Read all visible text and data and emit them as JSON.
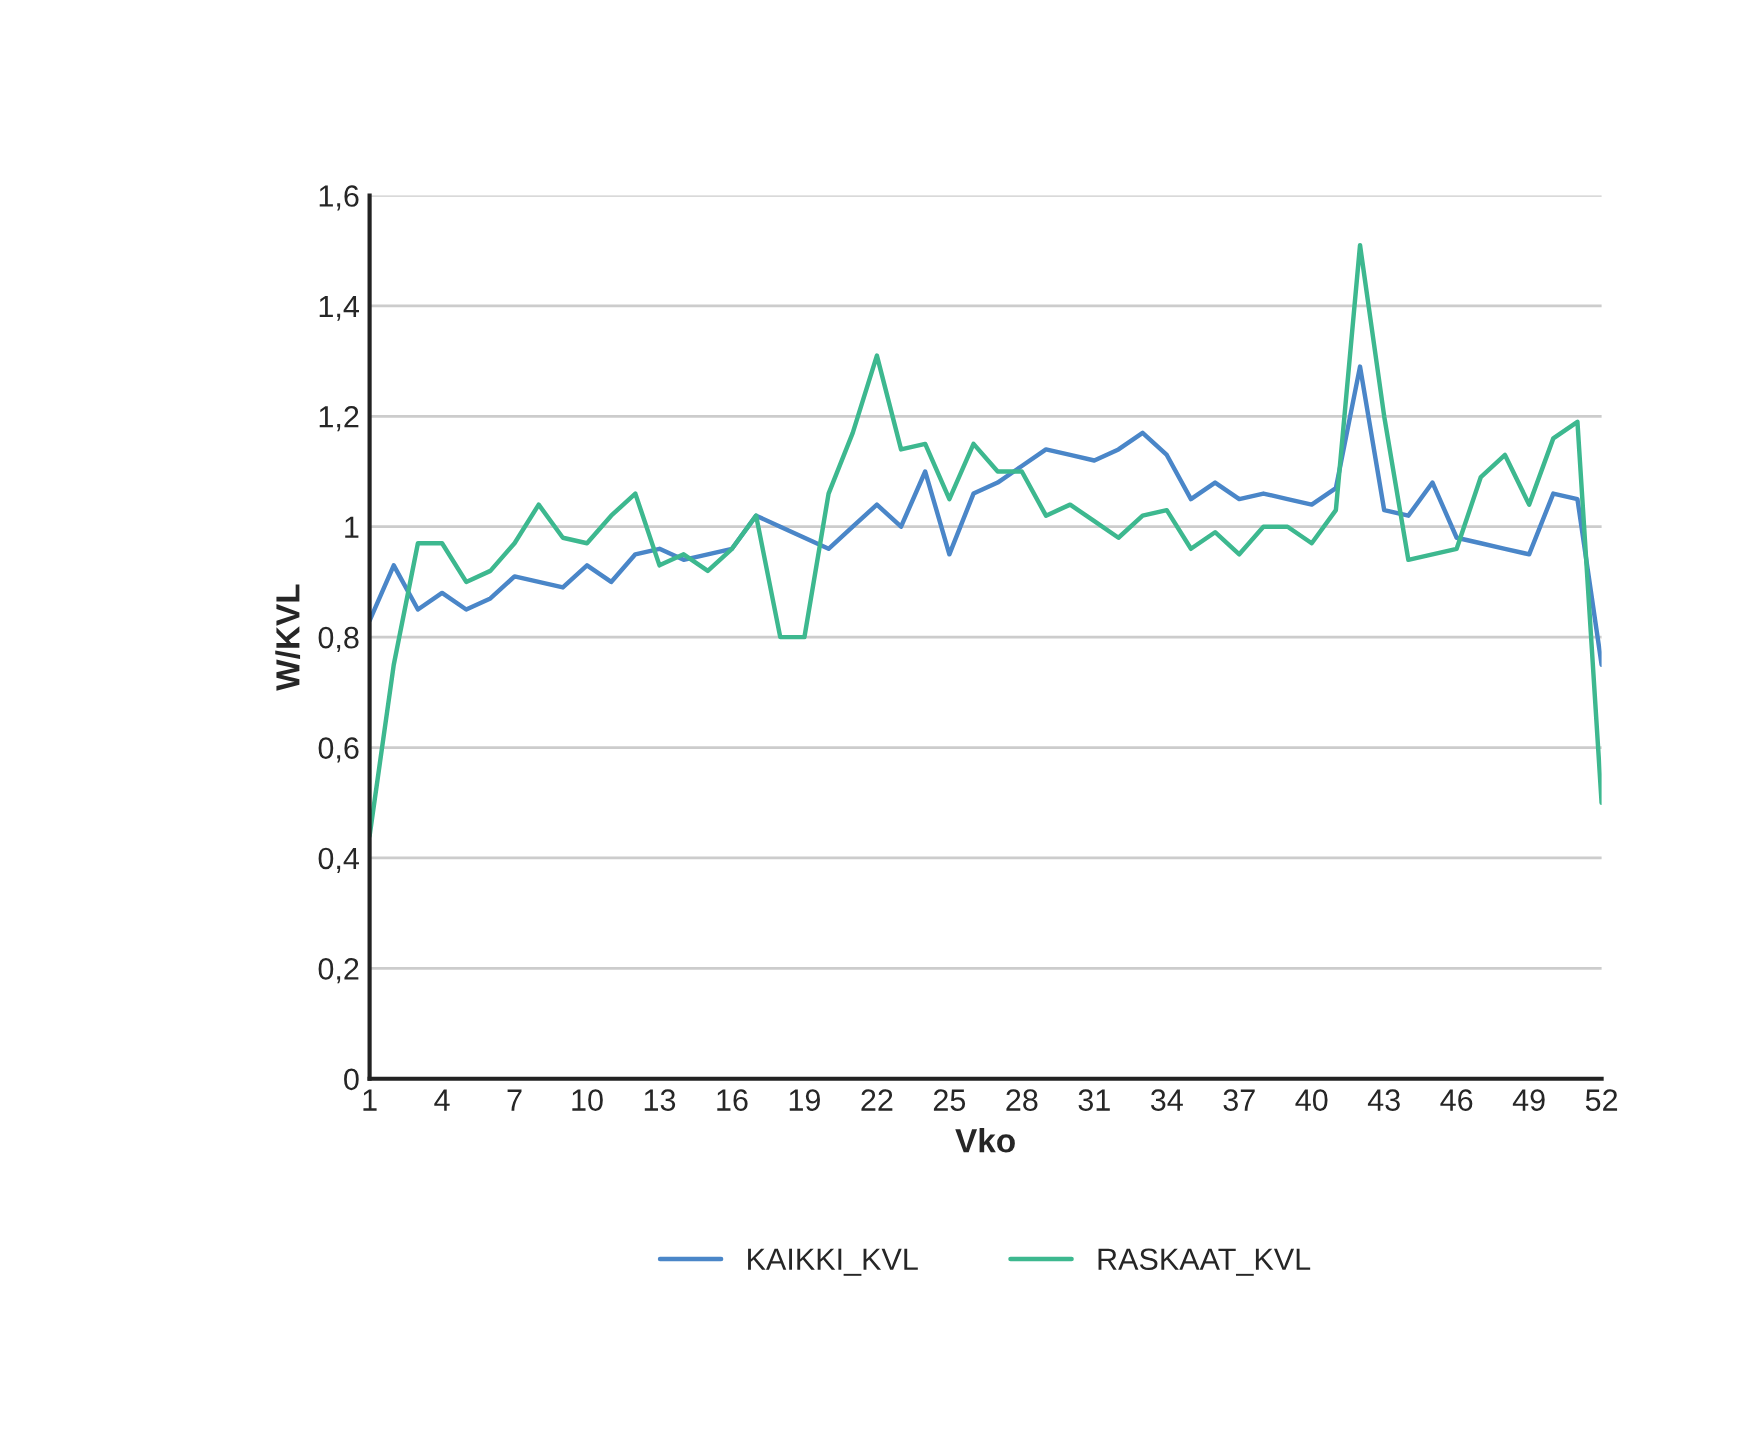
{
  "chart_data": {
    "type": "line",
    "xlabel": "Vko",
    "ylabel": "W/KVL",
    "x": [
      1,
      2,
      3,
      4,
      5,
      6,
      7,
      8,
      9,
      10,
      11,
      12,
      13,
      14,
      15,
      16,
      17,
      18,
      19,
      20,
      21,
      22,
      23,
      24,
      25,
      26,
      27,
      28,
      29,
      30,
      31,
      32,
      33,
      34,
      35,
      36,
      37,
      38,
      39,
      40,
      41,
      42,
      43,
      44,
      45,
      46,
      47,
      48,
      49,
      50,
      51,
      52
    ],
    "series": [
      {
        "name": "KAIKKI_KVL",
        "color": "#4a86c8",
        "values": [
          0.83,
          0.93,
          0.85,
          0.88,
          0.85,
          0.87,
          0.91,
          0.9,
          0.89,
          0.93,
          0.9,
          0.95,
          0.96,
          0.94,
          0.95,
          0.96,
          1.02,
          1.0,
          0.98,
          0.96,
          1.0,
          1.04,
          1.0,
          1.1,
          0.95,
          1.06,
          1.08,
          1.11,
          1.14,
          1.13,
          1.12,
          1.14,
          1.17,
          1.13,
          1.05,
          1.08,
          1.05,
          1.06,
          1.05,
          1.04,
          1.07,
          1.29,
          1.03,
          1.02,
          1.08,
          0.98,
          0.97,
          0.96,
          0.95,
          1.06,
          1.05,
          0.75
        ]
      },
      {
        "name": "RASKAAT_KVL",
        "color": "#3db88f",
        "values": [
          0.44,
          0.75,
          0.97,
          0.97,
          0.9,
          0.92,
          0.97,
          1.04,
          0.98,
          0.97,
          1.02,
          1.06,
          0.93,
          0.95,
          0.92,
          0.96,
          1.02,
          0.8,
          0.8,
          1.06,
          1.17,
          1.31,
          1.14,
          1.15,
          1.05,
          1.15,
          1.1,
          1.1,
          1.02,
          1.04,
          1.01,
          0.98,
          1.02,
          1.03,
          0.96,
          0.99,
          0.95,
          1.0,
          1.0,
          0.97,
          1.03,
          1.51,
          1.2,
          0.94,
          0.95,
          0.96,
          1.09,
          1.13,
          1.04,
          1.16,
          1.19,
          0.5
        ]
      }
    ],
    "xlim": [
      1,
      52
    ],
    "xticks": [
      1,
      4,
      7,
      10,
      13,
      16,
      19,
      22,
      25,
      28,
      31,
      34,
      37,
      40,
      43,
      46,
      49,
      52
    ],
    "ylim": [
      0,
      1.6
    ],
    "yticks": [
      {
        "value": 0,
        "label": "0"
      },
      {
        "value": 0.2,
        "label": "0,2"
      },
      {
        "value": 0.4,
        "label": "0,4"
      },
      {
        "value": 0.6,
        "label": "0,6"
      },
      {
        "value": 0.8,
        "label": "0,8"
      },
      {
        "value": 1,
        "label": "1"
      },
      {
        "value": 1.2,
        "label": "1,2"
      },
      {
        "value": 1.4,
        "label": "1,4"
      },
      {
        "value": 1.6,
        "label": "1,6"
      }
    ],
    "grid": "y",
    "legend": "bottom",
    "marker": "none",
    "line_style": "solid"
  }
}
